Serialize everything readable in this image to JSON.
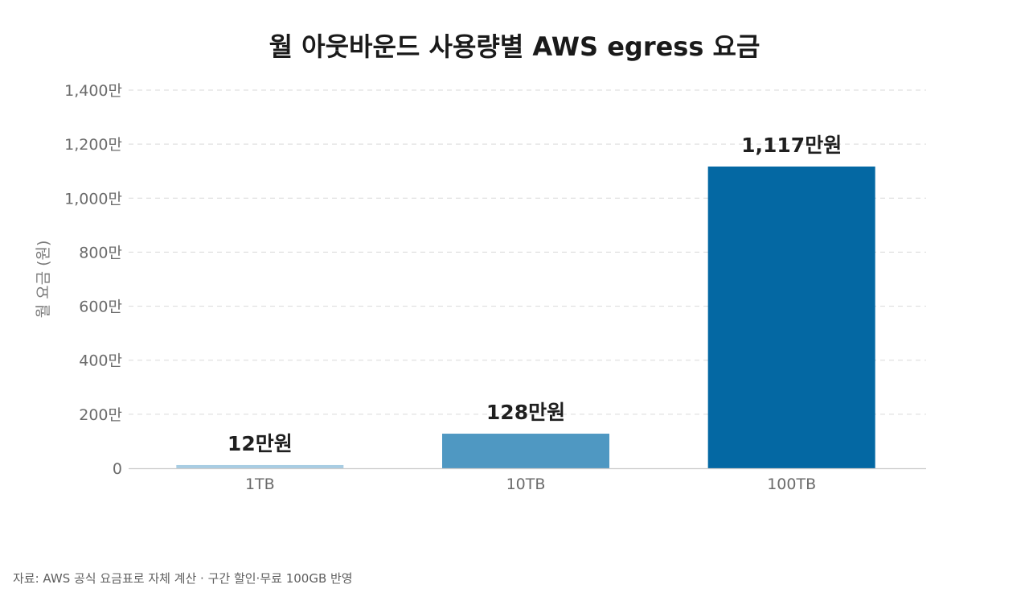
{
  "chart_data": {
    "type": "bar",
    "title": "월 아웃바운드 사용량별 AWS egress 요금",
    "ylabel": "월 요금 (원)",
    "xlabel": "",
    "categories": [
      "1TB",
      "10TB",
      "100TB"
    ],
    "values": [
      12,
      128,
      1117
    ],
    "value_unit": "만원",
    "data_labels": [
      "12만원",
      "128만원",
      "1,117만원"
    ],
    "bar_colors": [
      "#a8cde3",
      "#4f98c2",
      "#0468a3"
    ],
    "ylim": [
      0,
      1400
    ],
    "yticks": [
      0,
      200,
      400,
      600,
      800,
      1000,
      1200,
      1400
    ],
    "ytick_labels": [
      "0",
      "200만",
      "400만",
      "600만",
      "800만",
      "1,000만",
      "1,200만",
      "1,400만"
    ],
    "grid": true,
    "legend": "none"
  },
  "source_note": "자료: AWS 공식 요금표로 자체 계산 · 구간 할인·무료 100GB 반영"
}
